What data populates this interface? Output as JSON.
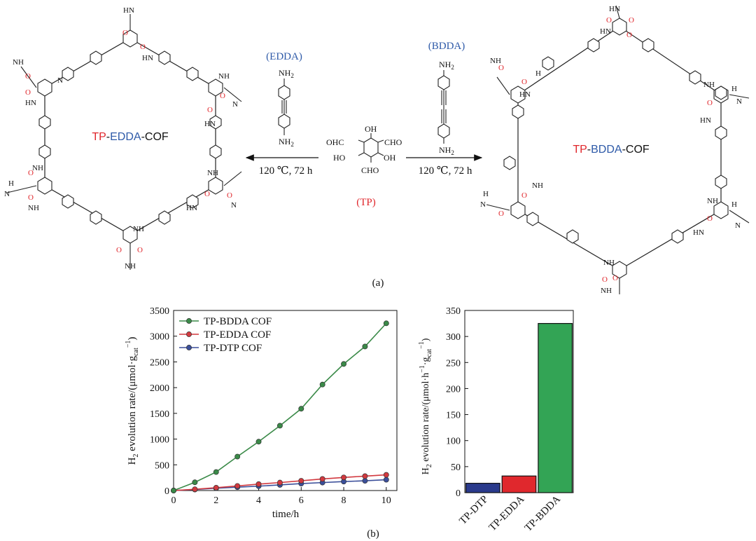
{
  "scheme": {
    "left_product": {
      "part1": "TP",
      "part2": "EDDA",
      "part3": "-COF"
    },
    "right_product": {
      "part1": "TP",
      "part2": "BDDA",
      "part3": "-COF"
    },
    "edda_label": "(EDDA)",
    "bdda_label": "(BDDA)",
    "tp_label": "(TP)",
    "nh2": "NH",
    "sub2": "2",
    "cho": "CHO",
    "oh": "OH",
    "ho": "HO",
    "ohc": "OHC",
    "conditions_left": "120 ℃, 72 h",
    "conditions_right": "120 ℃, 72 h",
    "amine_nh": "NH",
    "amine_hn": "HN",
    "hb_h": "H",
    "hb_n": "N",
    "o": "O",
    "caption": "(a)"
  },
  "caption_b": "(b)",
  "chart_data": [
    {
      "type": "line",
      "xlabel": "time/h",
      "ylabel": "H2 evolution rate/(μmol·gcat−1)",
      "ylabel_parts": {
        "h": "H",
        "two": "2",
        "mid": " evolution rate/(μmol·g",
        "cat": "cat",
        "sup": "−1",
        "end": ")"
      },
      "xlim": [
        0,
        10.5
      ],
      "ylim": [
        0,
        3500
      ],
      "xticks": [
        "0",
        "2",
        "4",
        "6",
        "8",
        "10"
      ],
      "yticks": [
        "0",
        "500",
        "1000",
        "1500",
        "2000",
        "2500",
        "3000",
        "3500"
      ],
      "legend_position": "top-left",
      "x": [
        0,
        1,
        2,
        3,
        4,
        5,
        6,
        7,
        8,
        9,
        10
      ],
      "series": [
        {
          "name": "TP-BDDA COF",
          "color": "#3a8a48",
          "values": [
            0,
            160,
            360,
            660,
            950,
            1260,
            1590,
            2060,
            2460,
            2800,
            3250
          ]
        },
        {
          "name": "TP-EDDA COF",
          "color": "#d2393f",
          "values": [
            0,
            25,
            55,
            90,
            125,
            155,
            190,
            225,
            255,
            280,
            305
          ]
        },
        {
          "name": "TP-DTP COF",
          "color": "#3b4f9a",
          "values": [
            0,
            20,
            45,
            65,
            85,
            110,
            135,
            155,
            175,
            190,
            210
          ]
        }
      ]
    },
    {
      "type": "bar",
      "ylabel": "H2 evolution rate/(μmol·h−1·gcat−1)",
      "ylabel_parts": {
        "h": "H",
        "two": "2",
        "mid": " evolution rate/(μmol·h",
        "sup1": "−1",
        "mid2": "·g",
        "cat": "cat",
        "sup2": "−1",
        "end": ")"
      },
      "ylim": [
        0,
        350
      ],
      "yticks": [
        "0",
        "50",
        "100",
        "150",
        "200",
        "250",
        "300",
        "350"
      ],
      "categories": [
        "TP-DTP",
        "TP-EDDA",
        "TP-BDDA"
      ],
      "values": [
        18,
        32,
        325
      ],
      "colors": [
        "#2a3a8c",
        "#e0282d",
        "#33a455"
      ]
    }
  ]
}
